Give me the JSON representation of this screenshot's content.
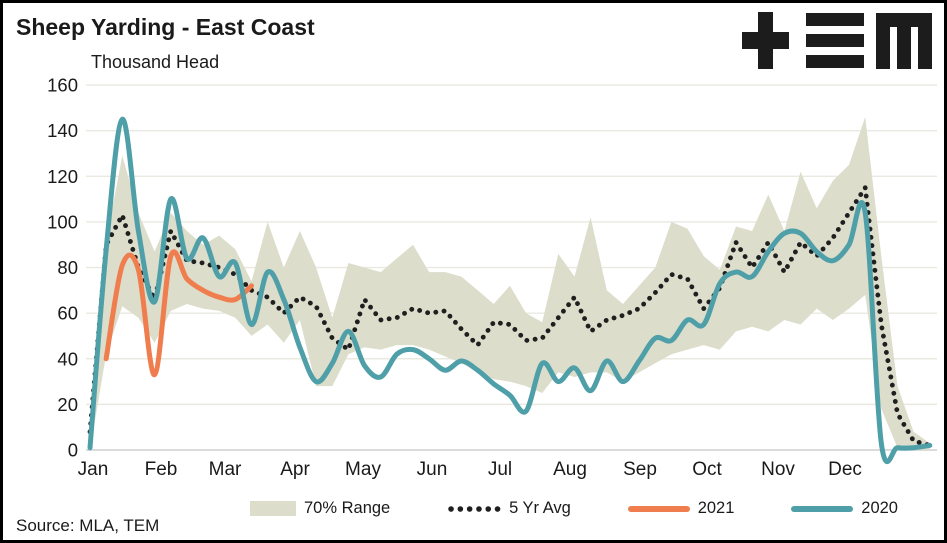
{
  "header": {
    "title": "Sheep Yarding - East Coast",
    "units_label": "Thousand Head",
    "logo_name": "TEM"
  },
  "legend": {
    "items": [
      {
        "label": "70% Range"
      },
      {
        "label": "5 Yr Avg"
      },
      {
        "label": "2021"
      },
      {
        "label": "2020"
      }
    ]
  },
  "source_text": "Source: MLA, TEM",
  "colors": {
    "range_band": "#dcddcb",
    "five_yr_avg": "#1f1f1f",
    "y2021": "#ef7d4d",
    "y2020": "#4f9fa9",
    "gridline": "#e9e9e0",
    "axis_line": "#d6d6d6",
    "text": "#1a1a1a"
  },
  "chart_data": {
    "type": "line",
    "title": "Sheep Yarding - East Coast",
    "ylabel": "Thousand Head",
    "ylim": [
      0,
      160
    ],
    "y_ticks": [
      0,
      20,
      40,
      60,
      80,
      100,
      120,
      140,
      160
    ],
    "x_unit": "week-of-year (53 points, Jan-Dec)",
    "months": [
      "Jan",
      "Feb",
      "Mar",
      "Apr",
      "May",
      "Jun",
      "Jul",
      "Aug",
      "Sep",
      "Oct",
      "Nov",
      "Dec"
    ],
    "grid": "horizontal-only",
    "legend_position": "bottom",
    "series": [
      {
        "name": "70% Range",
        "type": "band",
        "color": "#dcddcb",
        "upper": [
          6,
          92,
          129,
          104,
          87,
          104,
          96,
          90,
          94,
          88,
          74,
          100,
          80,
          96,
          80,
          58,
          82,
          80,
          78,
          84,
          90,
          78,
          78,
          76,
          70,
          64,
          72,
          60,
          56,
          86,
          76,
          102,
          70,
          64,
          72,
          80,
          100,
          97,
          85,
          79,
          98,
          96,
          112,
          96,
          122,
          106,
          118,
          125,
          146,
          85,
          28,
          8,
          3
        ],
        "lower": [
          0,
          42,
          63,
          58,
          47,
          61,
          64,
          62,
          61,
          58,
          50,
          55,
          47,
          57,
          28,
          28,
          42,
          45,
          44,
          46,
          46,
          44,
          41,
          38,
          34,
          31,
          30,
          28,
          25,
          34,
          32,
          34,
          34,
          30,
          34,
          38,
          42,
          44,
          46,
          44,
          52,
          54,
          52,
          57,
          55,
          62,
          57,
          62,
          68,
          18,
          1,
          0,
          0
        ]
      },
      {
        "name": "5 Yr Avg",
        "type": "dotted-line",
        "color": "#1f1f1f",
        "values": [
          8,
          90,
          103,
          80,
          66,
          96,
          83,
          82,
          80,
          77,
          70,
          67,
          60,
          67,
          63,
          49,
          44,
          66,
          57,
          58,
          62,
          60,
          61,
          53,
          46,
          56,
          55,
          48,
          49,
          58,
          67,
          52,
          57,
          59,
          62,
          69,
          77,
          75,
          62,
          71,
          91,
          80,
          91,
          78,
          91,
          85,
          93,
          104,
          115,
          55,
          16,
          4,
          2
        ]
      },
      {
        "name": "2021",
        "type": "line",
        "color": "#ef7d4d",
        "values": [
          null,
          40,
          81,
          79,
          33,
          85,
          75,
          70,
          67,
          66,
          72,
          null,
          null,
          null,
          null,
          null,
          null,
          null,
          null,
          null,
          null,
          null,
          null,
          null,
          null,
          null,
          null,
          null,
          null,
          null,
          null,
          null,
          null,
          null,
          null,
          null,
          null,
          null,
          null,
          null,
          null,
          null,
          null,
          null,
          null,
          null,
          null,
          null,
          null,
          null,
          null,
          null,
          null
        ]
      },
      {
        "name": "2020",
        "type": "line",
        "color": "#4f9fa9",
        "values": [
          1,
          88,
          145,
          96,
          65,
          110,
          84,
          93,
          76,
          82,
          55,
          78,
          66,
          45,
          30,
          38,
          52,
          37,
          32,
          42,
          44,
          40,
          35,
          39,
          35,
          29,
          24,
          17,
          38,
          30,
          36,
          26,
          39,
          30,
          39,
          49,
          48,
          57,
          55,
          73,
          78,
          76,
          87,
          95,
          95,
          87,
          83,
          90,
          104,
          3,
          1,
          1,
          2
        ]
      }
    ]
  }
}
